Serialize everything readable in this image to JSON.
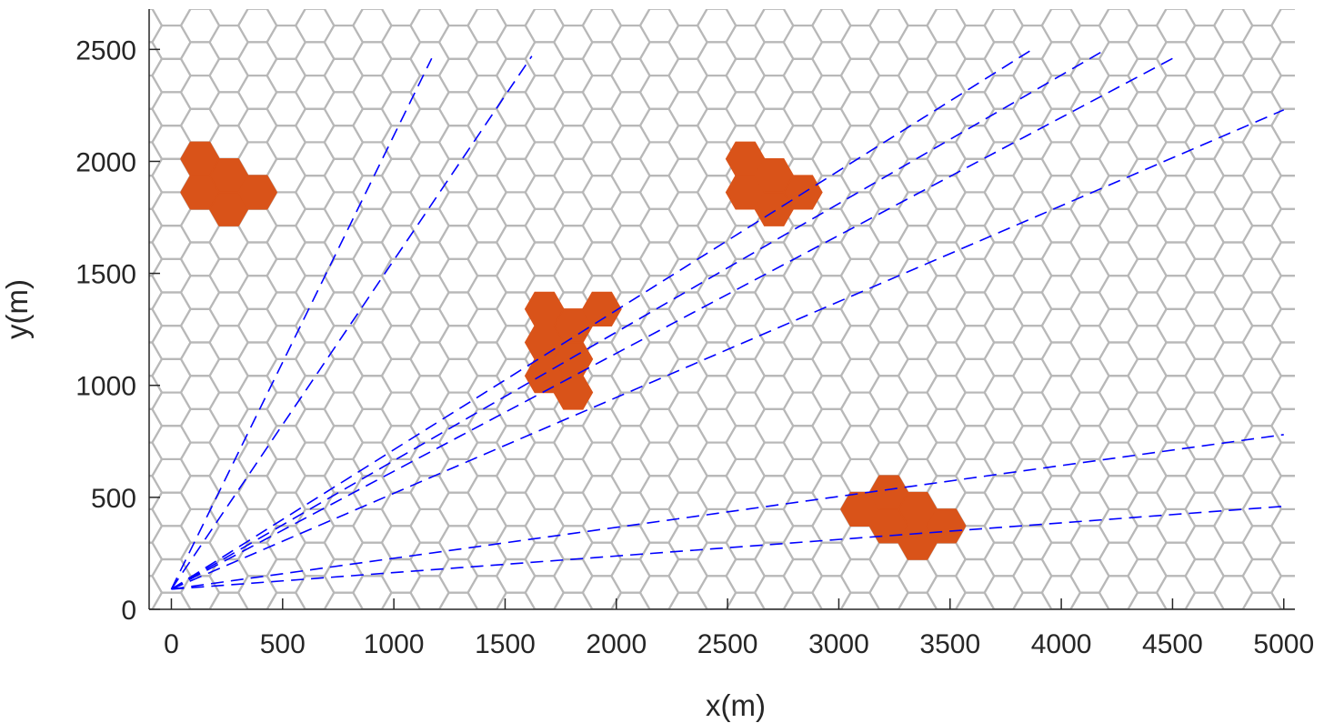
{
  "chart_data": {
    "type": "scatter",
    "title": "",
    "xlabel": "x(m)",
    "ylabel": "y(m)",
    "xlim": [
      -100,
      5050
    ],
    "ylim": [
      0,
      2680
    ],
    "x_ticks": [
      0,
      500,
      1000,
      1500,
      2000,
      2500,
      3000,
      3500,
      4000,
      4500,
      5000
    ],
    "y_ticks": [
      0,
      500,
      1000,
      1500,
      2000,
      2500
    ],
    "x_tick_labels": [
      "0",
      "500",
      "1000",
      "1500",
      "2000",
      "2500",
      "3000",
      "3500",
      "4000",
      "4500",
      "5000"
    ],
    "y_tick_labels": [
      "0",
      "500",
      "1000",
      "1500",
      "2000",
      "2500"
    ],
    "grid": "hexagonal",
    "hex_cell_radius_m": 86,
    "colors": {
      "hex_outline": "#b8b8b8",
      "highlighted_cell": "#d95319",
      "ray": "#0000ff",
      "axis": "#262626"
    },
    "origin": {
      "x": 0,
      "y": 90
    },
    "highlighted_clusters": [
      {
        "cells": [
          [
            1,
            25
          ],
          [
            1,
            27
          ],
          [
            2,
            24
          ],
          [
            2,
            26
          ],
          [
            3,
            25
          ]
        ]
      },
      {
        "cells": [
          [
            20,
            25
          ],
          [
            20,
            27
          ],
          [
            21,
            24
          ],
          [
            21,
            26
          ],
          [
            22,
            25
          ]
        ]
      },
      {
        "cells": [
          [
            13,
            14
          ],
          [
            13,
            16
          ],
          [
            13,
            18
          ],
          [
            14,
            13
          ],
          [
            14,
            15
          ],
          [
            14,
            17
          ],
          [
            15,
            18
          ]
        ]
      },
      {
        "cells": [
          [
            24,
            6
          ],
          [
            25,
            5
          ],
          [
            25,
            7
          ],
          [
            26,
            4
          ],
          [
            26,
            6
          ],
          [
            27,
            5
          ]
        ]
      }
    ],
    "rays": [
      {
        "x": 1170,
        "y": 2460
      },
      {
        "x": 1620,
        "y": 2470
      },
      {
        "x": 3870,
        "y": 2500
      },
      {
        "x": 4200,
        "y": 2500
      },
      {
        "x": 4520,
        "y": 2470
      },
      {
        "x": 5000,
        "y": 2230
      },
      {
        "x": 5000,
        "y": 780
      },
      {
        "x": 5000,
        "y": 460
      }
    ]
  }
}
